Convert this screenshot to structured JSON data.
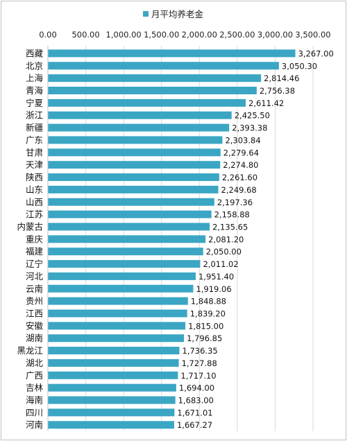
{
  "chart_data": {
    "type": "bar",
    "orientation": "horizontal",
    "legend": {
      "label": "月平均养老金",
      "position": "top",
      "color": "#3aa6c4"
    },
    "xlim": [
      0,
      3500
    ],
    "x_ticks": [
      0,
      500,
      1000,
      1500,
      2000,
      2500,
      3000,
      3500
    ],
    "x_tick_labels": [
      "0.00",
      "500.00",
      "1,000.00",
      "1,500.00",
      "2,000.00",
      "2,500.00",
      "3,000.00",
      "3,500.00"
    ],
    "x_axis_position": "top",
    "grid": true,
    "categories": [
      "西藏",
      "北京",
      "上海",
      "青海",
      "宁夏",
      "浙江",
      "新疆",
      "广东",
      "甘肃",
      "天津",
      "陕西",
      "山东",
      "山西",
      "江苏",
      "内蒙古",
      "重庆",
      "福建",
      "辽宁",
      "河北",
      "云南",
      "贵州",
      "江西",
      "安徽",
      "湖南",
      "黑龙江",
      "湖北",
      "广西",
      "吉林",
      "海南",
      "四川",
      "河南"
    ],
    "values": [
      3267.0,
      3050.3,
      2814.46,
      2756.38,
      2611.42,
      2425.5,
      2393.38,
      2303.84,
      2279.64,
      2274.8,
      2261.6,
      2249.68,
      2197.36,
      2158.88,
      2135.65,
      2081.2,
      2050.0,
      2011.02,
      1951.4,
      1919.06,
      1848.88,
      1839.2,
      1815.0,
      1796.85,
      1736.35,
      1727.88,
      1717.1,
      1694.0,
      1683.0,
      1671.01,
      1667.27
    ],
    "value_labels": [
      "3,267.00",
      "3,050.30",
      "2,814.46",
      "2,756.38",
      "2,611.42",
      "2,425.50",
      "2,393.38",
      "2,303.84",
      "2,279.64",
      "2,274.80",
      "2,261.60",
      "2,249.68",
      "2,197.36",
      "2,158.88",
      "2,135.65",
      "2,081.20",
      "2,050.00",
      "2,011.02",
      "1,951.40",
      "1,919.06",
      "1,848.88",
      "1,839.20",
      "1,815.00",
      "1,796.85",
      "1,736.35",
      "1,727.88",
      "1,717.10",
      "1,694.00",
      "1,683.00",
      "1,671.01",
      "1,667.27"
    ]
  }
}
